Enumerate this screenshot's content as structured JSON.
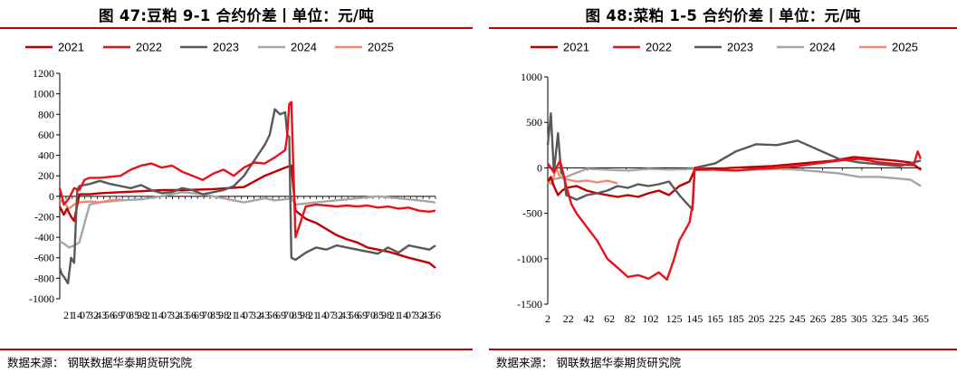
{
  "source": "数据来源：  钢联数据华泰期货研究院",
  "colors": {
    "2021": "#c00000",
    "2022": "#e8121b",
    "2023": "#595959",
    "2024": "#a6a6a6",
    "2025": "#f4876e"
  },
  "legend": [
    "2021",
    "2022",
    "2023",
    "2024",
    "2025"
  ],
  "chart_data": [
    {
      "type": "line",
      "title": "图 47:豆粕 9-1 合约价差丨单位：元/吨",
      "xlabel": "",
      "ylabel": "",
      "ylim": [
        -1000,
        1200
      ],
      "yticks": [
        -1000,
        -800,
        -600,
        -400,
        -200,
        0,
        200,
        400,
        600,
        800,
        1000,
        1200
      ],
      "xlim": [
        1,
        366
      ],
      "xtick_note": "x tick labels are unreadable (overlapping)",
      "grid": false,
      "legend_position": "top",
      "series": [
        {
          "name": "2021",
          "x": [
            1,
            5,
            8,
            12,
            15,
            20,
            30,
            40,
            60,
            80,
            100,
            120,
            150,
            180,
            200,
            210,
            220,
            226,
            230,
            240,
            250,
            260,
            270,
            280,
            290,
            300,
            310,
            320,
            340,
            360,
            366
          ],
          "y": [
            -100,
            -180,
            -120,
            -200,
            -240,
            20,
            20,
            30,
            40,
            50,
            60,
            60,
            70,
            90,
            200,
            240,
            280,
            300,
            -140,
            -220,
            -260,
            -320,
            -380,
            -420,
            -450,
            -500,
            -520,
            -540,
            -600,
            -650,
            -700
          ]
        },
        {
          "name": "2022",
          "x": [
            1,
            5,
            10,
            15,
            20,
            25,
            30,
            40,
            60,
            70,
            80,
            90,
            100,
            110,
            120,
            130,
            140,
            150,
            160,
            170,
            180,
            190,
            200,
            210,
            220,
            222,
            224,
            226,
            230,
            240,
            250,
            260,
            270,
            280,
            290,
            300,
            310,
            320,
            330,
            340,
            350,
            360,
            366
          ],
          "y": [
            80,
            -80,
            -20,
            80,
            60,
            160,
            180,
            180,
            200,
            260,
            300,
            320,
            280,
            300,
            240,
            200,
            160,
            220,
            260,
            200,
            280,
            330,
            320,
            380,
            450,
            600,
            900,
            920,
            -400,
            -100,
            -80,
            -90,
            -100,
            -90,
            -100,
            -90,
            -110,
            -100,
            -120,
            -110,
            -140,
            -150,
            -140
          ]
        },
        {
          "name": "2023",
          "x": [
            1,
            3,
            6,
            9,
            12,
            15,
            18,
            20,
            30,
            40,
            50,
            60,
            70,
            80,
            90,
            100,
            110,
            120,
            130,
            140,
            150,
            160,
            170,
            180,
            190,
            200,
            205,
            210,
            215,
            220,
            222,
            224,
            226,
            230,
            240,
            250,
            260,
            270,
            280,
            290,
            300,
            310,
            320,
            330,
            340,
            350,
            360,
            366
          ],
          "y": [
            -700,
            -760,
            -800,
            -850,
            -600,
            -650,
            60,
            100,
            120,
            150,
            120,
            100,
            80,
            110,
            60,
            30,
            40,
            80,
            60,
            20,
            40,
            60,
            100,
            200,
            350,
            500,
            600,
            850,
            800,
            820,
            600,
            580,
            -600,
            -620,
            -550,
            -500,
            -520,
            -480,
            -500,
            -520,
            -540,
            -560,
            -500,
            -550,
            -480,
            -500,
            -520,
            -480
          ]
        },
        {
          "name": "2024",
          "x": [
            1,
            5,
            10,
            15,
            20,
            30,
            40,
            60,
            80,
            100,
            120,
            140,
            160,
            180,
            200,
            210,
            220,
            226,
            230,
            250,
            270,
            290,
            310,
            330,
            350,
            366
          ],
          "y": [
            -440,
            -460,
            -500,
            -480,
            -450,
            -80,
            -60,
            -40,
            -30,
            0,
            40,
            20,
            -20,
            -60,
            -20,
            -40,
            -30,
            -20,
            -80,
            -60,
            -40,
            -20,
            0,
            -20,
            -40,
            -60
          ]
        },
        {
          "name": "2025",
          "x": [
            1,
            5,
            10,
            15,
            20,
            30,
            40,
            50,
            60
          ],
          "y": [
            -40,
            -60,
            -120,
            -80,
            -60,
            -50,
            -60,
            -40,
            -30
          ]
        }
      ]
    },
    {
      "type": "line",
      "title": "图 48:菜粕 1-5 合约价差丨单位：元/吨",
      "xlabel": "",
      "ylabel": "",
      "ylim": [
        -1500,
        1000
      ],
      "yticks": [
        -1500,
        -1000,
        -500,
        0,
        500,
        1000
      ],
      "xlim": [
        2,
        365
      ],
      "xticks": [
        2,
        22,
        42,
        62,
        82,
        102,
        125,
        145,
        165,
        185,
        205,
        225,
        245,
        265,
        285,
        305,
        325,
        345,
        365
      ],
      "grid": false,
      "legend_position": "top",
      "series": [
        {
          "name": "2021",
          "x": [
            2,
            5,
            8,
            12,
            16,
            20,
            30,
            40,
            50,
            60,
            70,
            80,
            90,
            100,
            110,
            120,
            130,
            140,
            145,
            160,
            180,
            200,
            220,
            240,
            260,
            280,
            300,
            320,
            340,
            355,
            365
          ],
          "y": [
            -150,
            -100,
            -200,
            -300,
            -250,
            -220,
            -200,
            -250,
            -280,
            -300,
            -320,
            -300,
            -320,
            -280,
            -250,
            -300,
            -200,
            -150,
            -20,
            -20,
            0,
            10,
            20,
            40,
            60,
            80,
            120,
            100,
            80,
            60,
            -20
          ]
        },
        {
          "name": "2022",
          "x": [
            2,
            8,
            14,
            20,
            25,
            30,
            40,
            50,
            60,
            70,
            80,
            90,
            100,
            110,
            118,
            125,
            130,
            135,
            140,
            143,
            145,
            165,
            185,
            205,
            225,
            245,
            265,
            285,
            305,
            325,
            345,
            358,
            362,
            365
          ],
          "y": [
            50,
            -50,
            80,
            -200,
            -400,
            -500,
            -650,
            -800,
            -1000,
            -1100,
            -1200,
            -1180,
            -1220,
            -1150,
            -1230,
            -1000,
            -800,
            -700,
            -600,
            -400,
            0,
            -20,
            -30,
            -10,
            0,
            20,
            50,
            80,
            100,
            60,
            40,
            30,
            180,
            100
          ]
        },
        {
          "name": "2023",
          "x": [
            2,
            5,
            8,
            12,
            15,
            18,
            20,
            30,
            40,
            50,
            60,
            70,
            80,
            90,
            100,
            110,
            120,
            130,
            138,
            143,
            145,
            165,
            185,
            205,
            225,
            245,
            255,
            265,
            285,
            305,
            325,
            345,
            365
          ],
          "y": [
            250,
            600,
            -50,
            380,
            -50,
            -100,
            -300,
            -350,
            -300,
            -280,
            -250,
            -200,
            -220,
            -180,
            -200,
            -180,
            -150,
            -300,
            -400,
            -460,
            0,
            50,
            180,
            260,
            250,
            300,
            250,
            200,
            100,
            60,
            40,
            20,
            80
          ]
        },
        {
          "name": "2024",
          "x": [
            2,
            10,
            20,
            40,
            60,
            80,
            100,
            120,
            145,
            165,
            185,
            205,
            225,
            245,
            265,
            285,
            305,
            325,
            345,
            355,
            365
          ],
          "y": [
            -150,
            -120,
            -100,
            -10,
            -20,
            -30,
            -10,
            -20,
            -10,
            -20,
            -30,
            -20,
            -10,
            -20,
            -40,
            -60,
            -100,
            -100,
            -120,
            -130,
            -200
          ]
        },
        {
          "name": "2025",
          "x": [
            2,
            6,
            10,
            14,
            18,
            22,
            30,
            40,
            50,
            60,
            70
          ],
          "y": [
            -150,
            -180,
            0,
            -100,
            -120,
            -130,
            -150,
            -140,
            -160,
            -140,
            -170
          ]
        }
      ]
    }
  ]
}
